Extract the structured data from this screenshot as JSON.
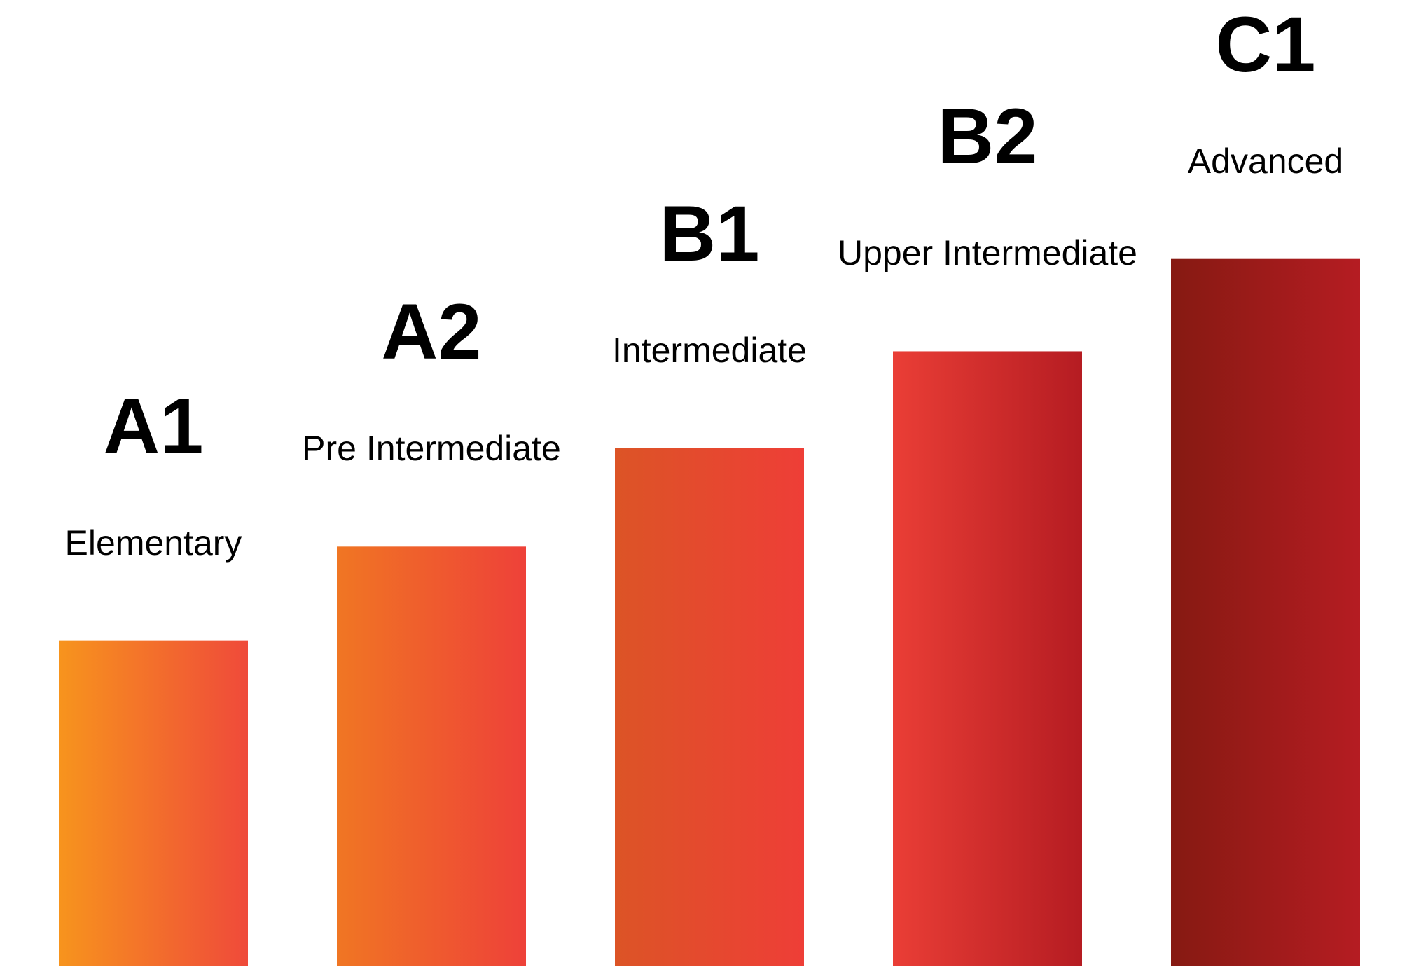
{
  "chart_data": {
    "type": "bar",
    "categories": [
      "A1",
      "A2",
      "B1",
      "B2",
      "C1"
    ],
    "level_names": [
      "Elementary",
      "Pre Intermediate",
      "Intermediate",
      "Upper Intermediate",
      "Advanced"
    ],
    "values": [
      363,
      468,
      578,
      686,
      789
    ],
    "ylim": [
      0,
      1078
    ],
    "colors": [
      [
        "#f7941d",
        "#ef4a3a"
      ],
      [
        "#f07623",
        "#ee4139"
      ],
      [
        "#dc5426",
        "#ee3e37"
      ],
      [
        "#ea3e36",
        "#b51c22"
      ],
      [
        "#861a12",
        "#b51c22"
      ]
    ]
  }
}
